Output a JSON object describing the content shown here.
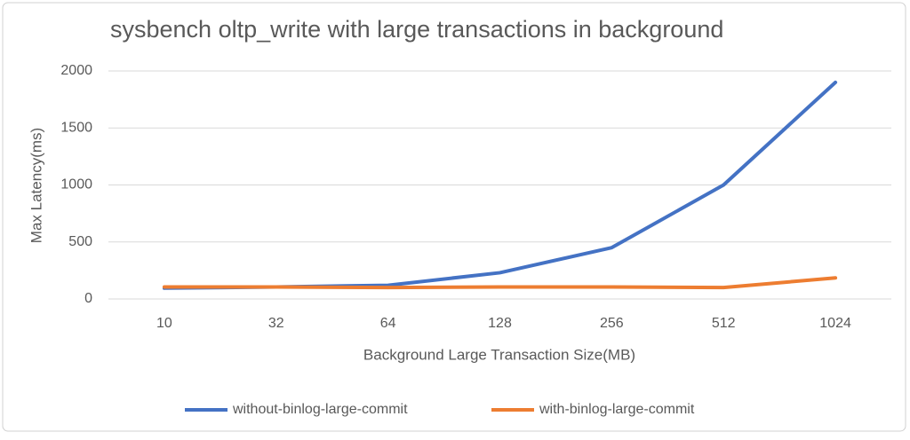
{
  "chart_data": {
    "type": "line",
    "title": "sysbench oltp_write with large transactions in background",
    "x_label": "Background Large Transaction Size(MB)",
    "y_label": "Max Latency(ms)",
    "categories": [
      "10",
      "32",
      "64",
      "128",
      "256",
      "512",
      "1024"
    ],
    "series": [
      {
        "name": "without-binlog-large-commit",
        "color": "#4472c4",
        "values": [
          95,
          105,
          120,
          230,
          450,
          1000,
          1900
        ]
      },
      {
        "name": "with-binlog-large-commit",
        "color": "#ed7d31",
        "values": [
          105,
          105,
          100,
          105,
          105,
          100,
          185
        ]
      }
    ],
    "ylim": [
      0,
      2000
    ],
    "yticks": [
      0,
      500,
      1000,
      1500,
      2000
    ],
    "grid": true,
    "legend": "bottom"
  }
}
